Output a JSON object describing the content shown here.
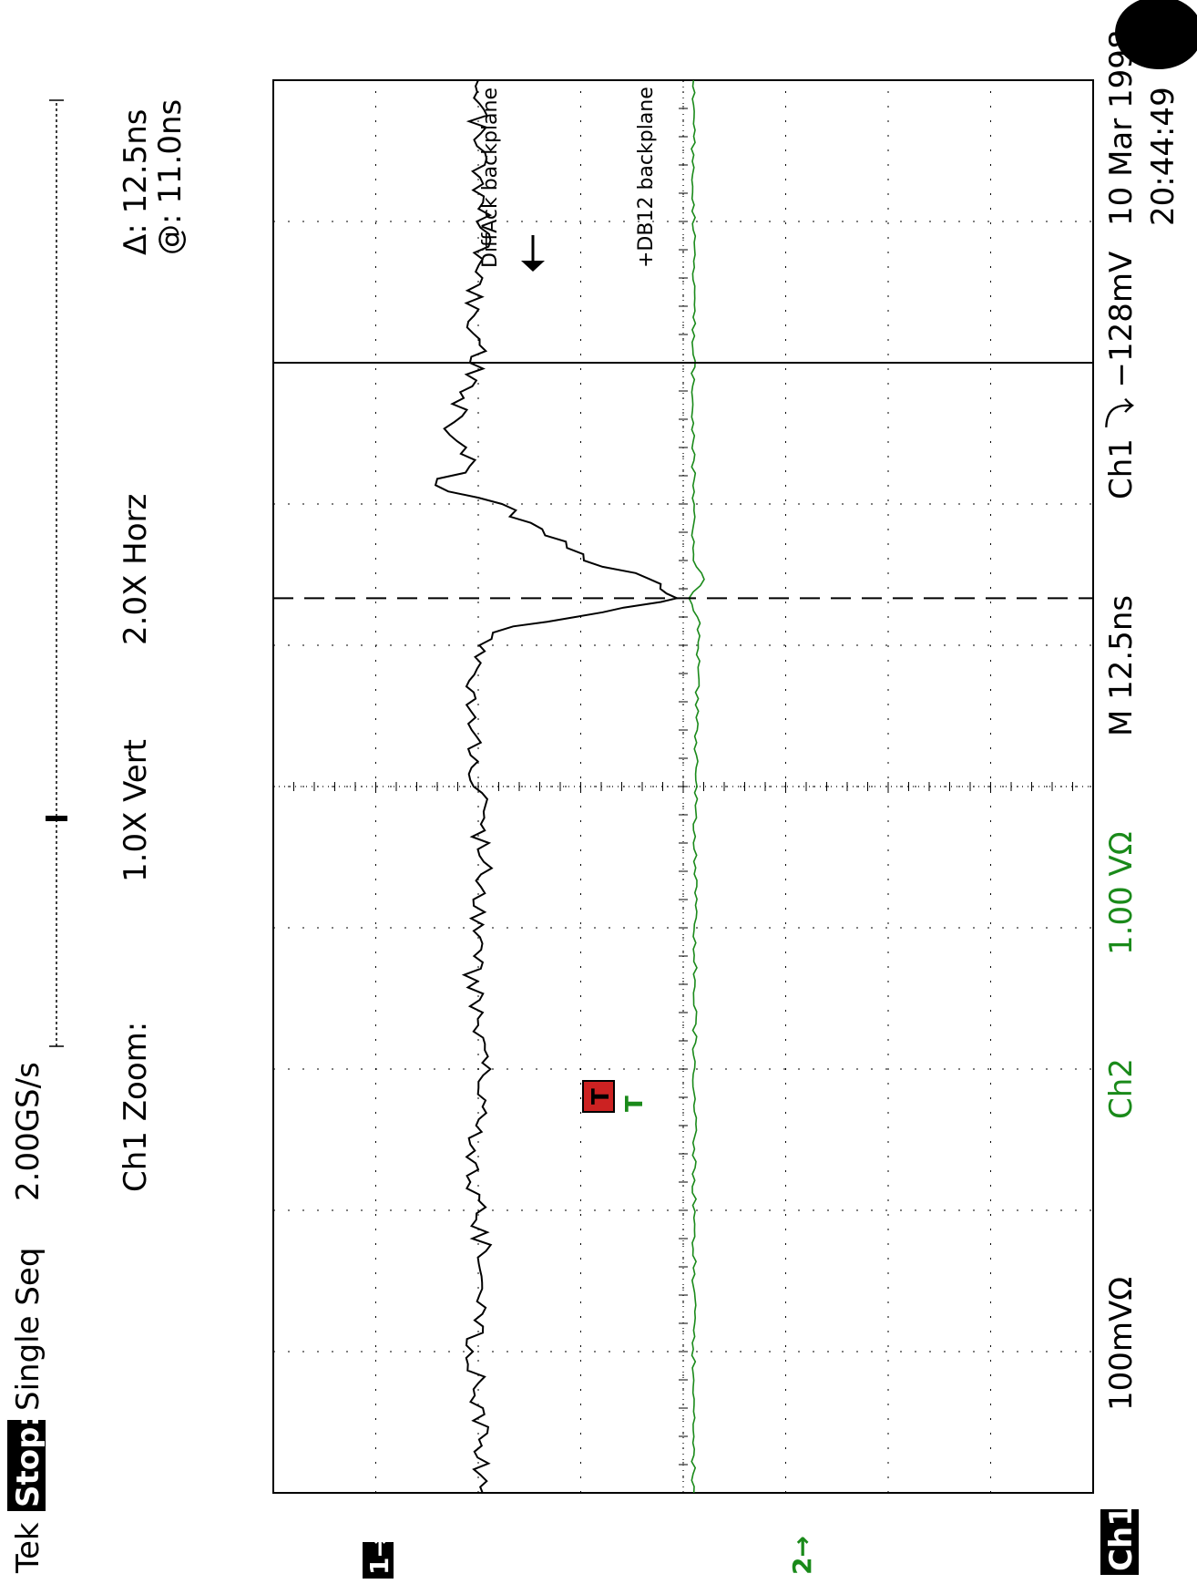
{
  "header": {
    "brand": "Tek",
    "state": "Stop:",
    "mode": "Single Seq",
    "sample_rate": "2.00GS/s"
  },
  "zoom": {
    "label": "Ch1 Zoom:",
    "vert": "1.0X Vert",
    "horz": "2.0X Horz"
  },
  "cursor": {
    "delta": "Δ: 12.5ns",
    "at": "@: 11.0ns"
  },
  "markers": {
    "ch1": "1→",
    "ch2": "2→",
    "trigger_point": "T"
  },
  "footer": {
    "ch1_label": "Ch1",
    "ch1_scale": "100mVΩ",
    "ch2_label": "Ch2",
    "ch2_scale": "1.00 VΩ",
    "timebase": "M 12.5ns",
    "trigger": "Ch1 ⤵ −128mV",
    "date": "10 Mar 1998",
    "time": "20:44:49"
  },
  "colors": {
    "ch1": "#000000",
    "ch2": "#1a8a1a",
    "trigger_marker": "#cc2222"
  },
  "chart_data": {
    "type": "line",
    "title": "",
    "xlabel": "",
    "ylabel": "",
    "x_unit": "ns",
    "x_divisions": 10,
    "y_divisions": 8,
    "xlim": [
      -47.5,
      27.5
    ],
    "grid": true,
    "series": [
      {
        "name": "DiffAck backplane",
        "channel": "Ch1",
        "volts_per_div": 0.1,
        "ground_div": 2.0,
        "description_points_ns_div": [
          [
            -47.5,
            2.0
          ],
          [
            -45,
            2.05
          ],
          [
            -40,
            1.95
          ],
          [
            -35,
            2.05
          ],
          [
            -30,
            1.95
          ],
          [
            -25,
            2.05
          ],
          [
            -20,
            1.95
          ],
          [
            -15,
            2.05
          ],
          [
            -10,
            2.0
          ],
          [
            -5,
            1.95
          ],
          [
            -2.5,
            2.05
          ],
          [
            -1.5,
            2.3
          ],
          [
            -1.0,
            3.0
          ],
          [
            -0.5,
            3.5
          ],
          [
            -0.2,
            3.8
          ],
          [
            0,
            3.95
          ],
          [
            0.5,
            3.85
          ],
          [
            1.0,
            3.7
          ],
          [
            2,
            3.1
          ],
          [
            3,
            2.8
          ],
          [
            4,
            2.45
          ],
          [
            5,
            2.2
          ],
          [
            6,
            1.55
          ],
          [
            7,
            1.95
          ],
          [
            8,
            1.8
          ],
          [
            9,
            1.75
          ],
          [
            10,
            1.8
          ],
          [
            12.5,
            2.0
          ],
          [
            15,
            1.95
          ],
          [
            20,
            2.05
          ],
          [
            25,
            2.0
          ],
          [
            27.5,
            2.0
          ]
        ]
      },
      {
        "name": "+DB12 backplane",
        "channel": "Ch2",
        "volts_per_div": 1.0,
        "ground_div": 4.1,
        "description_points_ns_div": [
          [
            -47.5,
            4.1
          ],
          [
            -10,
            4.12
          ],
          [
            -1,
            4.15
          ],
          [
            0,
            4.05
          ],
          [
            1,
            4.2
          ],
          [
            2,
            4.1
          ],
          [
            27.5,
            4.1
          ]
        ]
      }
    ]
  }
}
